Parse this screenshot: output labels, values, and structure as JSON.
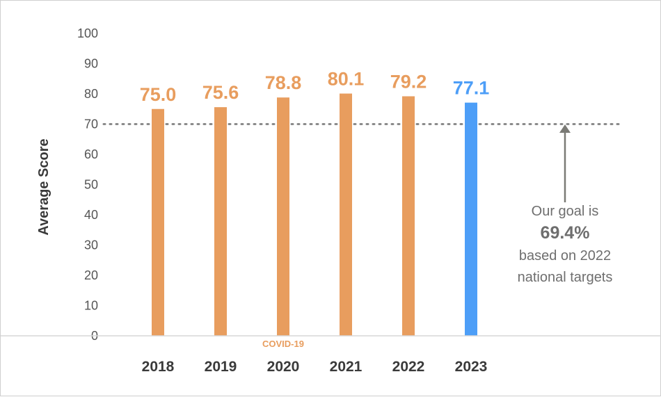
{
  "chart_data": {
    "type": "bar",
    "categories": [
      "2018",
      "2019",
      "2020",
      "2021",
      "2022",
      "2023"
    ],
    "values": [
      75.0,
      75.6,
      78.8,
      80.1,
      79.2,
      77.1
    ],
    "data_labels": [
      "75.0",
      "75.6",
      "78.8",
      "80.1",
      "79.2",
      "77.1"
    ],
    "highlight_index": 5,
    "ylabel": "Average Score",
    "ylim": [
      0,
      100
    ],
    "yticks": [
      "0",
      "10",
      "20",
      "30",
      "40",
      "50",
      "60",
      "70",
      "80",
      "90",
      "100"
    ],
    "reference_line": {
      "value": 70,
      "style": "dotted"
    },
    "grid": false,
    "colors": {
      "bar": "#E89D5E",
      "highlight": "#4D9EF7",
      "reference": "#8a8a8a",
      "arrow": "#7a7a75"
    },
    "category_note": {
      "category": "2020",
      "text": "COVID-19"
    },
    "annotation": {
      "line1": "Our goal is",
      "value": "69.4%",
      "line3": "based on 2022",
      "line4": "national targets"
    }
  }
}
